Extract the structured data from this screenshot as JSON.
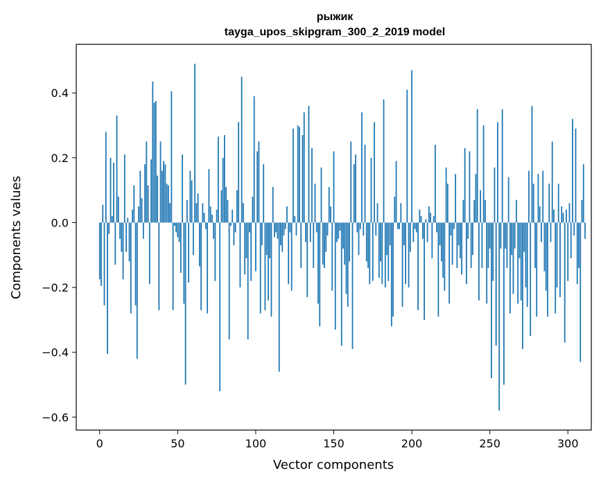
{
  "chart_data": {
    "type": "bar",
    "title_line1": "рыжик",
    "title_line2": "tayga_upos_skipgram_300_2_2019 model",
    "xlabel": "Vector components",
    "ylabel": "Components values",
    "xlim": [
      -15,
      315
    ],
    "ylim": [
      -0.64,
      0.55
    ],
    "xticks": [
      0,
      50,
      100,
      150,
      200,
      250,
      300
    ],
    "xtick_labels": [
      "0",
      "50",
      "100",
      "150",
      "200",
      "250",
      "300"
    ],
    "yticks": [
      -0.6,
      -0.4,
      -0.2,
      0.0,
      0.2,
      0.4
    ],
    "ytick_labels": [
      "−0.6",
      "−0.4",
      "−0.2",
      "0.0",
      "0.2",
      "0.4"
    ],
    "bar_color": "#1f77b4",
    "values": [
      -0.175,
      -0.195,
      0.055,
      -0.255,
      0.28,
      -0.405,
      -0.035,
      0.2,
      0.02,
      0.185,
      -0.13,
      0.33,
      0.08,
      -0.05,
      -0.09,
      -0.175,
      0.21,
      -0.09,
      0.015,
      -0.12,
      -0.28,
      0.04,
      0.115,
      -0.255,
      -0.42,
      0.05,
      0.16,
      0.075,
      -0.05,
      0.18,
      0.25,
      0.115,
      -0.19,
      0.195,
      0.435,
      0.37,
      0.375,
      0.145,
      -0.27,
      0.25,
      0.16,
      0.19,
      0.18,
      0.12,
      0.115,
      0.06,
      0.405,
      -0.27,
      -0.01,
      -0.03,
      -0.045,
      -0.06,
      -0.155,
      0.21,
      -0.25,
      -0.5,
      0.07,
      -0.185,
      0.16,
      0.13,
      -0.1,
      0.49,
      0.06,
      0.09,
      -0.135,
      -0.27,
      0.06,
      0.03,
      -0.02,
      -0.28,
      0.165,
      0.05,
      0.025,
      -0.05,
      -0.18,
      0.04,
      0.265,
      -0.52,
      0.1,
      0.2,
      0.27,
      0.11,
      0.07,
      -0.36,
      -0.01,
      0.04,
      -0.07,
      -0.03,
      0.1,
      0.31,
      -0.2,
      0.45,
      0.06,
      -0.16,
      -0.11,
      -0.36,
      -0.03,
      -0.18,
      0.08,
      0.39,
      -0.15,
      0.22,
      0.25,
      -0.28,
      -0.07,
      0.18,
      -0.27,
      -0.1,
      -0.24,
      -0.11,
      -0.29,
      0.11,
      -0.045,
      -0.03,
      -0.05,
      -0.46,
      -0.07,
      -0.09,
      -0.04,
      -0.02,
      0.05,
      -0.19,
      -0.03,
      -0.21,
      0.29,
      0.02,
      -0.04,
      0.3,
      0.295,
      -0.14,
      0.27,
      0.34,
      -0.06,
      -0.23,
      0.36,
      -0.06,
      0.23,
      -0.14,
      0.12,
      -0.03,
      -0.25,
      -0.32,
      0.17,
      -0.13,
      -0.14,
      -0.09,
      -0.04,
      0.11,
      0.05,
      -0.21,
      0.22,
      -0.33,
      -0.06,
      -0.05,
      -0.025,
      -0.38,
      -0.08,
      -0.13,
      -0.22,
      -0.26,
      -0.12,
      0.25,
      -0.39,
      0.18,
      0.21,
      -0.03,
      -0.1,
      -0.02,
      0.34,
      -0.04,
      0.24,
      -0.12,
      -0.14,
      -0.19,
      0.2,
      -0.18,
      0.31,
      -0.04,
      0.06,
      -0.17,
      -0.12,
      -0.19,
      0.38,
      -0.2,
      -0.1,
      -0.18,
      -0.07,
      -0.32,
      -0.29,
      0.08,
      0.19,
      -0.02,
      -0.02,
      0.06,
      -0.26,
      -0.07,
      -0.19,
      0.41,
      -0.2,
      -0.09,
      0.47,
      -0.06,
      -0.02,
      -0.03,
      -0.27,
      0.04,
      0.02,
      -0.05,
      -0.3,
      0.01,
      -0.06,
      0.05,
      0.03,
      -0.11,
      0.02,
      0.24,
      -0.03,
      -0.29,
      -0.07,
      -0.12,
      -0.17,
      -0.21,
      0.17,
      0.12,
      -0.25,
      -0.04,
      -0.13,
      -0.02,
      0.15,
      -0.14,
      -0.07,
      -0.11,
      -0.16,
      0.07,
      0.23,
      -0.19,
      -0.05,
      0.22,
      -0.14,
      -0.1,
      0.07,
      0.15,
      0.35,
      -0.24,
      0.1,
      -0.14,
      0.3,
      0.07,
      -0.25,
      -0.14,
      -0.08,
      -0.48,
      -0.18,
      0.17,
      -0.38,
      0.31,
      -0.58,
      -0.08,
      0.35,
      -0.5,
      -0.08,
      -0.14,
      0.14,
      -0.28,
      -0.1,
      -0.22,
      -0.08,
      0.07,
      -0.25,
      -0.11,
      -0.24,
      -0.39,
      -0.09,
      -0.2,
      -0.26,
      0.16,
      -0.35,
      0.36,
      0.12,
      -0.14,
      -0.29,
      0.15,
      0.05,
      -0.06,
      0.16,
      -0.15,
      -0.21,
      -0.29,
      0.12,
      -0.06,
      0.25,
      0.04,
      -0.28,
      -0.2,
      0.12,
      -0.23,
      0.05,
      0.03,
      -0.37,
      0.04,
      -0.18,
      0.06,
      -0.11,
      0.32,
      -0.04,
      0.29,
      -0.19,
      -0.14,
      -0.43,
      0.07,
      0.18,
      -0.05
    ]
  }
}
